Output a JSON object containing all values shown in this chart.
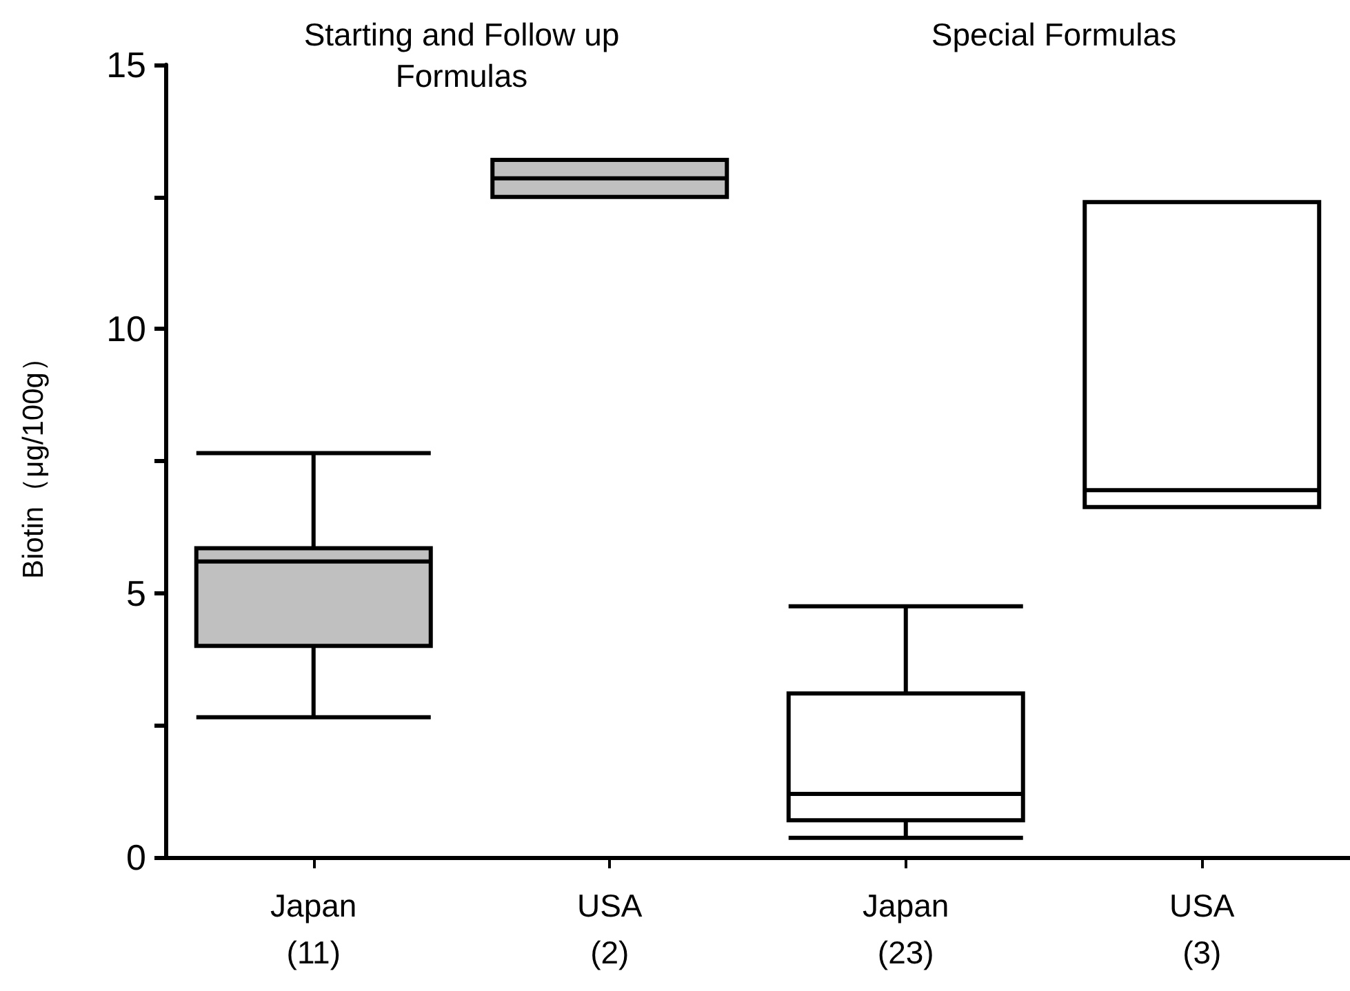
{
  "chart_data": {
    "type": "box",
    "ylabel": "Biotin（μg/100g）",
    "categories": [
      "Japan\n(11)",
      "USA\n(2)",
      "Japan\n(23)",
      "USA\n(3)"
    ],
    "annotations": [
      "Starting and Follow up\nFormulas",
      "Special Formulas"
    ],
    "colors": [
      "#c0c0c0",
      "#c0c0c0",
      "#ffffff",
      "#ffffff"
    ],
    "boxes": [
      {
        "low": 2.65,
        "q1": 4.0,
        "median": 5.6,
        "q3": 5.85,
        "high": 7.65
      },
      {
        "low": 12.5,
        "q1": 12.5,
        "median": 12.85,
        "q3": 13.2,
        "high": 13.2
      },
      {
        "low": 0.37,
        "q1": 0.7,
        "median": 1.2,
        "q3": 3.1,
        "high": 4.75
      },
      {
        "low": 6.63,
        "q1": 6.63,
        "median": 6.95,
        "q3": 12.4,
        "high": 12.4
      }
    ],
    "ylim": [
      0,
      15
    ],
    "yticks": [
      0,
      {
        "value": 2.5,
        "label": null
      },
      5,
      {
        "value": 7.5,
        "label": null
      },
      10,
      {
        "value": 12.5,
        "label": null
      },
      15
    ],
    "grid": false
  }
}
